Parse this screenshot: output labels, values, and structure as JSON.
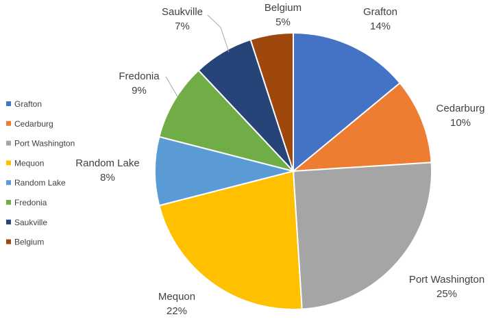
{
  "chart_data": {
    "type": "pie",
    "title": "",
    "legend_position": "left",
    "slices": [
      {
        "label": "Grafton",
        "value": 14,
        "percent_label": "14%",
        "color": "#4472C4"
      },
      {
        "label": "Cedarburg",
        "value": 10,
        "percent_label": "10%",
        "color": "#ED7D31"
      },
      {
        "label": "Port Washington",
        "value": 25,
        "percent_label": "25%",
        "color": "#A5A5A5"
      },
      {
        "label": "Mequon",
        "value": 22,
        "percent_label": "22%",
        "color": "#FFC000"
      },
      {
        "label": "Random Lake",
        "value": 8,
        "percent_label": "8%",
        "color": "#5B9BD5"
      },
      {
        "label": "Fredonia",
        "value": 9,
        "percent_label": "9%",
        "color": "#70AD47"
      },
      {
        "label": "Saukville",
        "value": 7,
        "percent_label": "7%",
        "color": "#264478"
      },
      {
        "label": "Belgium",
        "value": 5,
        "percent_label": "5%",
        "color": "#9E480E"
      }
    ]
  }
}
